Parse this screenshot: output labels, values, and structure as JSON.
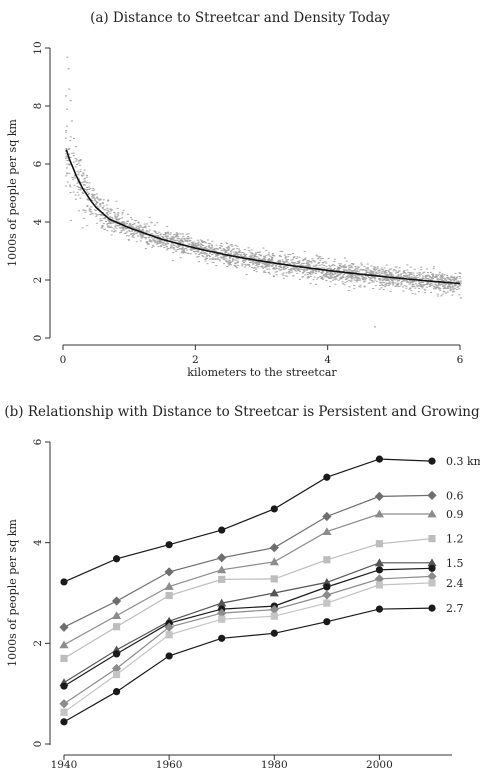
{
  "chart_data": [
    {
      "type": "scatter",
      "title": "(a) Distance to Streetcar and Density Today",
      "xlabel": "kilometers to the streetcar",
      "ylabel": "1000s of people per sq km",
      "xlim": [
        0,
        6
      ],
      "ylim": [
        0,
        10
      ],
      "xticks": [
        0,
        2,
        4,
        6
      ],
      "yticks": [
        0,
        2,
        4,
        6,
        8,
        10
      ],
      "grid": false,
      "fit_curve": {
        "x": [
          0.05,
          0.1,
          0.2,
          0.3,
          0.4,
          0.5,
          0.7,
          1.0,
          1.5,
          2.0,
          2.5,
          3.0,
          3.5,
          4.0,
          4.5,
          5.0,
          5.5,
          6.0
        ],
        "y": [
          6.5,
          6.15,
          5.6,
          5.15,
          4.8,
          4.5,
          4.1,
          3.8,
          3.4,
          3.1,
          2.85,
          2.65,
          2.48,
          2.33,
          2.2,
          2.08,
          1.97,
          1.88
        ]
      },
      "scatter_note_values": {
        "x": [
          0.05,
          0.07,
          0.08,
          0.1,
          0.12,
          0.15,
          0.2,
          0.3,
          0.5,
          0.8,
          1.2,
          1.8,
          2.5,
          3.0,
          3.5,
          4.0,
          4.5,
          4.7,
          5.0,
          5.5,
          5.8,
          6.0
        ],
        "y": [
          9.7,
          9.3,
          8.6,
          8.2,
          7.5,
          6.9,
          6.0,
          5.4,
          4.7,
          4.1,
          3.7,
          3.2,
          2.9,
          2.7,
          2.5,
          2.35,
          2.2,
          0.4,
          2.1,
          1.9,
          1.6,
          1.4
        ]
      }
    },
    {
      "type": "line",
      "title": "(b) Relationship with Distance to Streetcar is Persistent and Growing",
      "xlabel": "",
      "ylabel": "1000s of people per sq km",
      "xlim": [
        1940,
        2010
      ],
      "ylim": [
        0,
        6
      ],
      "xticks": [
        1940,
        1960,
        1980,
        2000
      ],
      "yticks": [
        0,
        2,
        4,
        6
      ],
      "x": [
        1940,
        1950,
        1960,
        1970,
        1980,
        1990,
        2000,
        2010
      ],
      "series": [
        {
          "name": "0.3 km",
          "color": "#1a1a1a",
          "marker": "circle",
          "values": [
            3.22,
            3.68,
            3.96,
            4.25,
            4.67,
            5.3,
            5.66,
            5.62
          ]
        },
        {
          "name": "0.6",
          "color": "#6e6e6e",
          "marker": "diamond",
          "values": [
            2.32,
            2.84,
            3.42,
            3.7,
            3.9,
            4.52,
            4.92,
            4.94
          ]
        },
        {
          "name": "0.9",
          "color": "#8c8c8c",
          "marker": "triangle",
          "values": [
            1.97,
            2.55,
            3.13,
            3.46,
            3.62,
            4.22,
            4.57,
            4.57
          ]
        },
        {
          "name": "1.2",
          "color": "#bdbdbd",
          "marker": "square",
          "values": [
            1.7,
            2.33,
            2.95,
            3.27,
            3.28,
            3.66,
            3.98,
            4.08
          ]
        },
        {
          "name": "1.5",
          "color": "#555555",
          "marker": "triangle",
          "values": [
            1.22,
            1.87,
            2.44,
            2.8,
            3.0,
            3.21,
            3.6,
            3.6
          ]
        },
        {
          "name": "",
          "color": "#1a1a1a",
          "marker": "circle",
          "values": [
            1.15,
            1.79,
            2.4,
            2.68,
            2.74,
            3.12,
            3.46,
            3.49
          ]
        },
        {
          "name": "",
          "color": "#8c8c8c",
          "marker": "diamond",
          "values": [
            0.8,
            1.5,
            2.32,
            2.6,
            2.67,
            2.96,
            3.28,
            3.33
          ]
        },
        {
          "name": "2.4",
          "color": "#c4c4c4",
          "marker": "square",
          "values": [
            0.63,
            1.38,
            2.17,
            2.48,
            2.54,
            2.8,
            3.16,
            3.2
          ]
        },
        {
          "name": "2.7",
          "color": "#1a1a1a",
          "marker": "circle",
          "values": [
            0.44,
            1.04,
            1.75,
            2.1,
            2.2,
            2.43,
            2.68,
            2.7
          ]
        }
      ]
    }
  ]
}
